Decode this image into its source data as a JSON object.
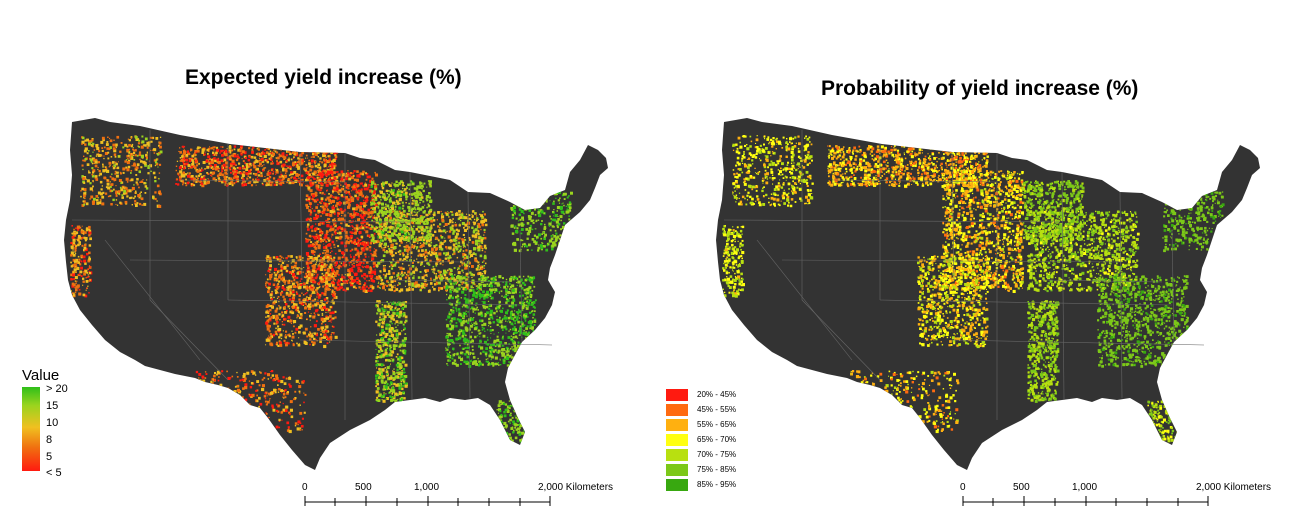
{
  "panels": [
    {
      "title": "Expected yield increase (%)",
      "legend": {
        "type": "continuous",
        "title": "Value",
        "ticks": [
          "> 20",
          "15",
          "10",
          "8",
          "5",
          "< 5"
        ],
        "colors": [
          "#2fbf1a",
          "#9bd41e",
          "#f0c020",
          "#f07010",
          "#ff1a10"
        ]
      },
      "scalebar": {
        "labels": [
          "0",
          "500",
          "1,000",
          "2,000 Kilometers"
        ]
      }
    },
    {
      "title": "Probability of yield increase (%)",
      "legend": {
        "type": "classes",
        "classes": [
          {
            "label": "20% - 45%",
            "color": "#ff1a10"
          },
          {
            "label": "45% - 55%",
            "color": "#ff6a10"
          },
          {
            "label": "55% - 65%",
            "color": "#ffb010"
          },
          {
            "label": "65% - 70%",
            "color": "#ffff10"
          },
          {
            "label": "70% - 75%",
            "color": "#b8e010"
          },
          {
            "label": "75% - 85%",
            "color": "#7cc818"
          },
          {
            "label": "85% - 95%",
            "color": "#38a810"
          }
        ]
      },
      "scalebar": {
        "labels": [
          "0",
          "500",
          "1,000",
          "2,000 Kilometers"
        ]
      }
    }
  ],
  "map_style": {
    "land": "#333333",
    "state_lines": "#666666"
  }
}
